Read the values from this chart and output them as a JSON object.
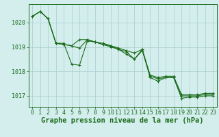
{
  "background_color": "#d4eeee",
  "grid_color": "#aacccc",
  "line_color": "#1a6b1a",
  "marker_color": "#1a6b1a",
  "xlabel": "Graphe pression niveau de la mer (hPa)",
  "xlabel_fontsize": 7.5,
  "tick_fontsize": 6,
  "xlim": [
    -0.5,
    23.5
  ],
  "ylim": [
    1016.55,
    1020.75
  ],
  "yticks": [
    1017,
    1018,
    1019,
    1020
  ],
  "xticks": [
    0,
    1,
    2,
    3,
    4,
    5,
    6,
    7,
    8,
    9,
    10,
    11,
    12,
    13,
    14,
    15,
    16,
    17,
    18,
    19,
    20,
    21,
    22,
    23
  ],
  "series": [
    [
      1020.25,
      1020.45,
      1020.15,
      1019.15,
      1019.1,
      1019.05,
      1019.3,
      1019.3,
      1019.2,
      1019.1,
      1019.0,
      1018.9,
      1018.7,
      1018.5,
      1018.9,
      1017.85,
      1017.75,
      1017.8,
      1017.8,
      1017.05,
      1017.05,
      1017.05,
      1017.1,
      1017.1
    ],
    [
      1020.25,
      1020.45,
      1020.15,
      1019.15,
      1019.15,
      1018.3,
      1018.25,
      1019.25,
      1019.2,
      1019.15,
      1019.05,
      1018.95,
      1018.85,
      1018.75,
      1018.9,
      1017.75,
      1017.6,
      1017.75,
      1017.75,
      1016.9,
      1016.95,
      1016.95,
      1017.0,
      1017.0
    ],
    [
      1020.25,
      1020.45,
      1020.15,
      1019.15,
      1019.1,
      1019.05,
      1018.95,
      1019.3,
      1019.2,
      1019.1,
      1019.05,
      1018.9,
      1018.8,
      1018.5,
      1018.85,
      1017.8,
      1017.7,
      1017.75,
      1017.75,
      1017.0,
      1017.0,
      1017.0,
      1017.05,
      1017.05
    ]
  ]
}
